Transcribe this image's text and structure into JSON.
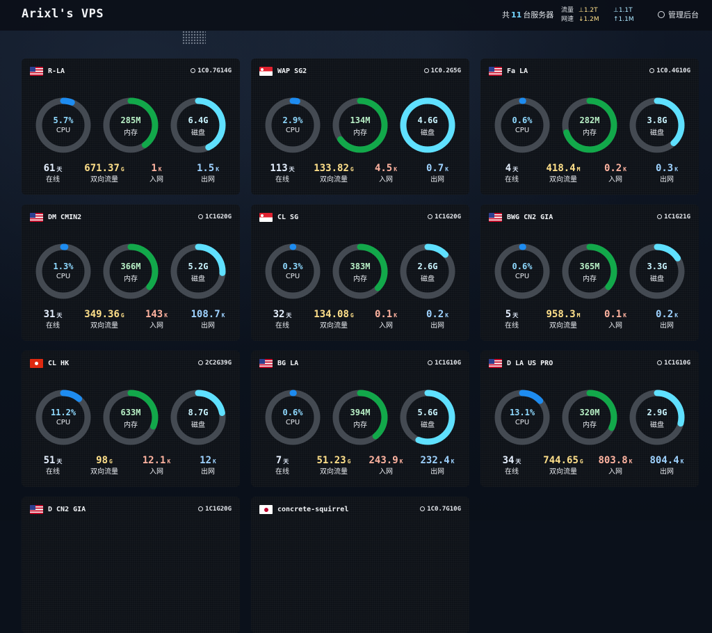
{
  "header": {
    "title": "Arixl's VPS",
    "server_count_prefix": "共",
    "server_count": "11",
    "server_count_suffix": "台服务器",
    "traffic_label": "流量",
    "speed_label": "网速",
    "traffic_up": "⊥1.2T",
    "traffic_down": "⊥1.1T",
    "speed_up": "↓1.2M",
    "speed_down": "↑1.1M",
    "admin_label": "管理后台"
  },
  "labels": {
    "cpu": "CPU",
    "mem": "内存",
    "disk": "磁盘",
    "uptime": "在线",
    "traffic": "双向流量",
    "in": "入网",
    "out": "出网"
  },
  "colors": {
    "cpu_ring": "#1e8cf0",
    "mem_ring": "#12a84a",
    "disk_ring": "#5fe0ff",
    "ring_track": "#444a52"
  },
  "servers": [
    {
      "name": "R-LA",
      "flag": "us",
      "spec": "1C0.7G14G",
      "cpu": "5.7%",
      "cpu_pct": 5.7,
      "mem": "285M",
      "mem_pct": 40,
      "disk": "6.4G",
      "disk_pct": 43,
      "uptime": "61",
      "uptime_unit": "天",
      "traffic": "671.37",
      "traffic_unit": "G",
      "in": "1",
      "in_unit": "K",
      "out": "1.5",
      "out_unit": "K"
    },
    {
      "name": "WAP SG2",
      "flag": "sg",
      "spec": "1C0.2G5G",
      "cpu": "2.9%",
      "cpu_pct": 2.9,
      "mem": "134M",
      "mem_pct": 65,
      "disk": "4.6G",
      "disk_pct": 100,
      "uptime": "113",
      "uptime_unit": "天",
      "traffic": "133.82",
      "traffic_unit": "G",
      "in": "4.5",
      "in_unit": "K",
      "out": "0.7",
      "out_unit": "K"
    },
    {
      "name": "Fa LA",
      "flag": "us",
      "spec": "1C0.4G10G",
      "cpu": "0.6%",
      "cpu_pct": 0.6,
      "mem": "282M",
      "mem_pct": 70,
      "disk": "3.8G",
      "disk_pct": 38,
      "uptime": "4",
      "uptime_unit": "天",
      "traffic": "418.4",
      "traffic_unit": "M",
      "in": "0.2",
      "in_unit": "K",
      "out": "0.3",
      "out_unit": "K"
    },
    {
      "name": "DM CMIN2",
      "flag": "us",
      "spec": "1C1G20G",
      "cpu": "1.3%",
      "cpu_pct": 1.3,
      "mem": "366M",
      "mem_pct": 36,
      "disk": "5.2G",
      "disk_pct": 26,
      "uptime": "31",
      "uptime_unit": "天",
      "traffic": "349.36",
      "traffic_unit": "G",
      "in": "143",
      "in_unit": "K",
      "out": "108.7",
      "out_unit": "K"
    },
    {
      "name": "CL SG",
      "flag": "sg",
      "spec": "1C1G20G",
      "cpu": "0.3%",
      "cpu_pct": 0.3,
      "mem": "383M",
      "mem_pct": 37,
      "disk": "2.6G",
      "disk_pct": 13,
      "uptime": "32",
      "uptime_unit": "天",
      "traffic": "134.08",
      "traffic_unit": "G",
      "in": "0.1",
      "in_unit": "K",
      "out": "0.2",
      "out_unit": "K"
    },
    {
      "name": "BWG CN2 GIA",
      "flag": "us",
      "spec": "1C1G21G",
      "cpu": "0.6%",
      "cpu_pct": 0.6,
      "mem": "365M",
      "mem_pct": 36,
      "disk": "3.3G",
      "disk_pct": 16,
      "uptime": "5",
      "uptime_unit": "天",
      "traffic": "958.3",
      "traffic_unit": "M",
      "in": "0.1",
      "in_unit": "K",
      "out": "0.2",
      "out_unit": "K"
    },
    {
      "name": "CL HK",
      "flag": "hk",
      "spec": "2C2G39G",
      "cpu": "11.2%",
      "cpu_pct": 11.2,
      "mem": "633M",
      "mem_pct": 31,
      "disk": "8.7G",
      "disk_pct": 22,
      "uptime": "51",
      "uptime_unit": "天",
      "traffic": "98",
      "traffic_unit": "G",
      "in": "12.1",
      "in_unit": "K",
      "out": "12",
      "out_unit": "K"
    },
    {
      "name": "BG LA",
      "flag": "us",
      "spec": "1C1G10G",
      "cpu": "0.6%",
      "cpu_pct": 0.6,
      "mem": "394M",
      "mem_pct": 39,
      "disk": "5.6G",
      "disk_pct": 56,
      "uptime": "7",
      "uptime_unit": "天",
      "traffic": "51.23",
      "traffic_unit": "G",
      "in": "243.9",
      "in_unit": "K",
      "out": "232.4",
      "out_unit": "K"
    },
    {
      "name": "D LA US PRO",
      "flag": "us",
      "spec": "1C1G10G",
      "cpu": "13.1%",
      "cpu_pct": 13.1,
      "mem": "320M",
      "mem_pct": 32,
      "disk": "2.9G",
      "disk_pct": 29,
      "uptime": "34",
      "uptime_unit": "天",
      "traffic": "744.65",
      "traffic_unit": "G",
      "in": "803.8",
      "in_unit": "K",
      "out": "804.4",
      "out_unit": "K"
    },
    {
      "name": "D CN2 GIA",
      "flag": "us",
      "spec": "1C1G20G"
    },
    {
      "name": "concrete-squirrel",
      "flag": "jp",
      "spec": "1C0.7G10G"
    }
  ]
}
